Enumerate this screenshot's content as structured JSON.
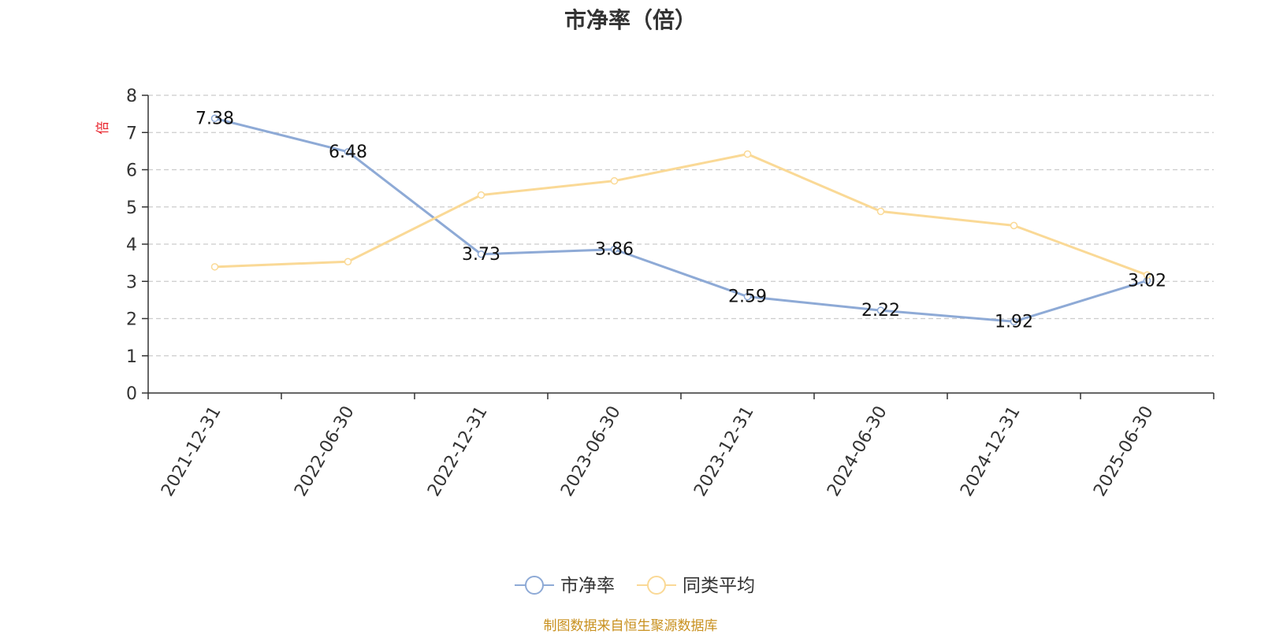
{
  "chart_data": {
    "type": "line",
    "title": "市净率（倍）",
    "ylabel": "倍",
    "xlabel": "",
    "categories": [
      "2021-12-31",
      "2022-06-30",
      "2022-12-31",
      "2023-06-30",
      "2023-12-31",
      "2024-06-30",
      "2024-12-31",
      "2025-06-30"
    ],
    "ylim": [
      0,
      8
    ],
    "yticks": [
      0,
      1,
      2,
      3,
      4,
      5,
      6,
      7,
      8
    ],
    "grid": true,
    "legend_position": "bottom-center",
    "series": [
      {
        "name": "市净率",
        "color": "#8eaad6",
        "show_labels": true,
        "values": [
          7.38,
          6.48,
          3.73,
          3.86,
          2.59,
          2.22,
          1.92,
          3.02
        ]
      },
      {
        "name": "同类平均",
        "color": "#fad996",
        "show_labels": false,
        "values": [
          3.39,
          3.53,
          5.32,
          5.7,
          6.42,
          4.88,
          4.5,
          3.17
        ]
      }
    ],
    "data_labels": [
      "7.38",
      "6.48",
      "3.73",
      "3.86",
      "2.59",
      "2.22",
      "1.92",
      "3.02"
    ]
  },
  "source_note": "制图数据来自恒生聚源数据库"
}
